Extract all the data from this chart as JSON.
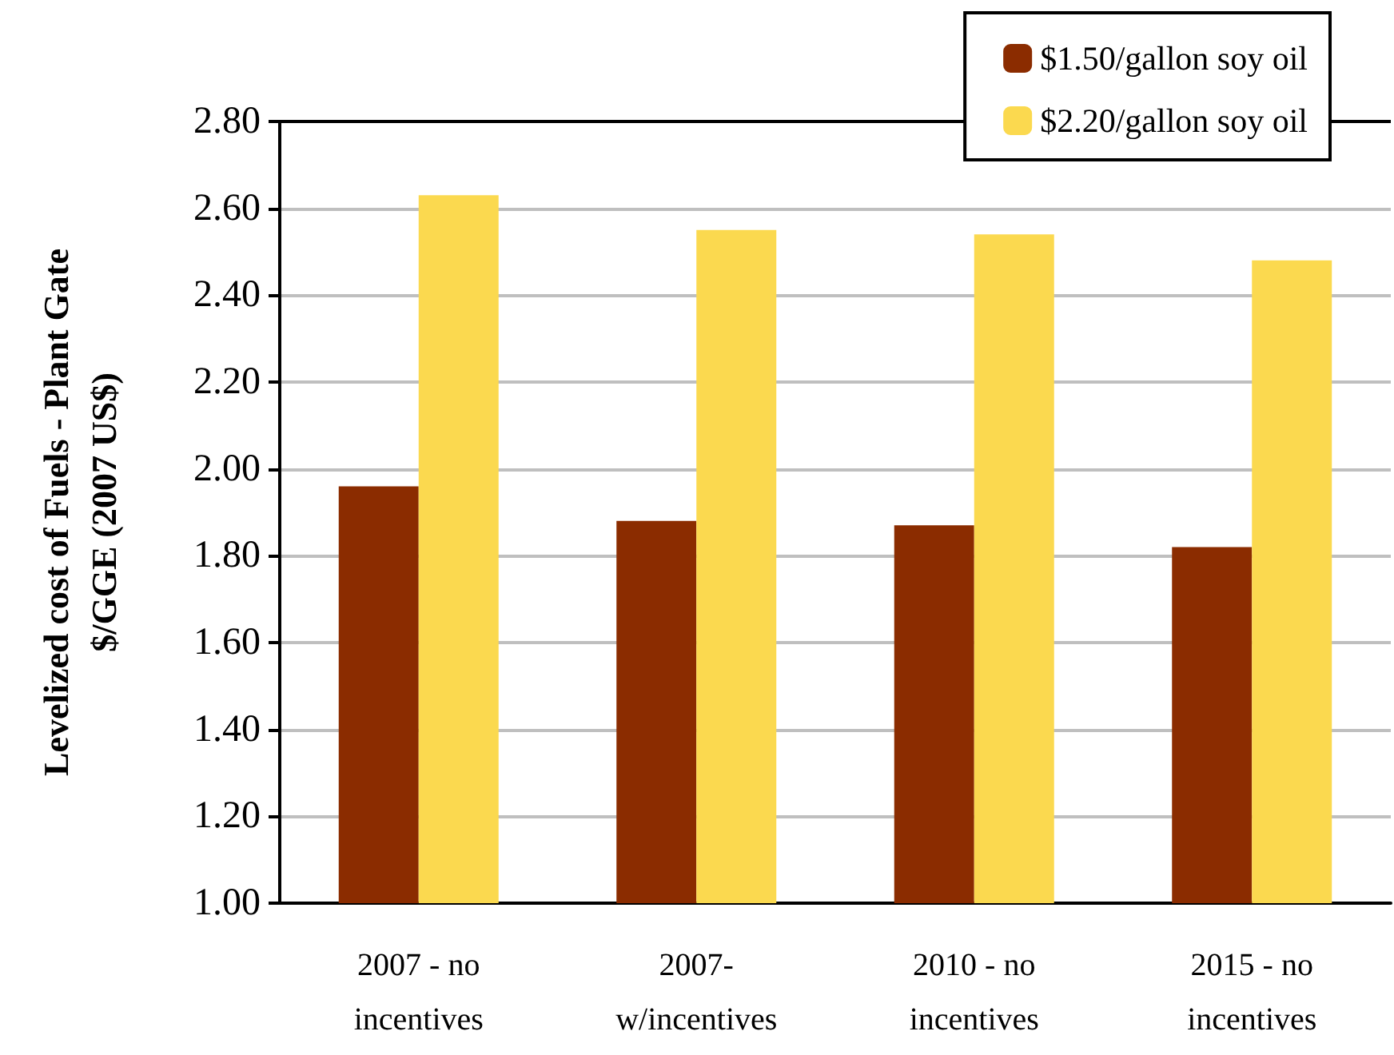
{
  "chart_data": {
    "type": "bar",
    "ylabel": "Levelized cost of Fuels - Plant Gate\n$/GGE (2007 US$)",
    "categories": [
      "2007 - no\nincentives",
      "2007-\nw/incentives",
      "2010 - no\nincentives",
      "2015 - no\nincentives"
    ],
    "series": [
      {
        "name": "$1.50/gallon soy oil",
        "color": "#8b2c00",
        "values": [
          1.96,
          1.88,
          1.87,
          1.82
        ]
      },
      {
        "name": "$2.20/gallon soy oil",
        "color": "#fbd94f",
        "values": [
          2.63,
          2.55,
          2.54,
          2.48
        ]
      }
    ],
    "ylim": [
      1.0,
      2.8
    ],
    "yticks": [
      {
        "value": 1.0,
        "label": "1.00"
      },
      {
        "value": 1.2,
        "label": "1.20"
      },
      {
        "value": 1.4,
        "label": "1.40"
      },
      {
        "value": 1.6,
        "label": "1.60"
      },
      {
        "value": 1.8,
        "label": "1.80"
      },
      {
        "value": 2.0,
        "label": "2.00"
      },
      {
        "value": 2.2,
        "label": "2.20"
      },
      {
        "value": 2.4,
        "label": "2.40"
      },
      {
        "value": 2.6,
        "label": "2.60"
      },
      {
        "value": 2.8,
        "label": "2.80"
      }
    ],
    "grid": "y",
    "legend": "top right"
  }
}
